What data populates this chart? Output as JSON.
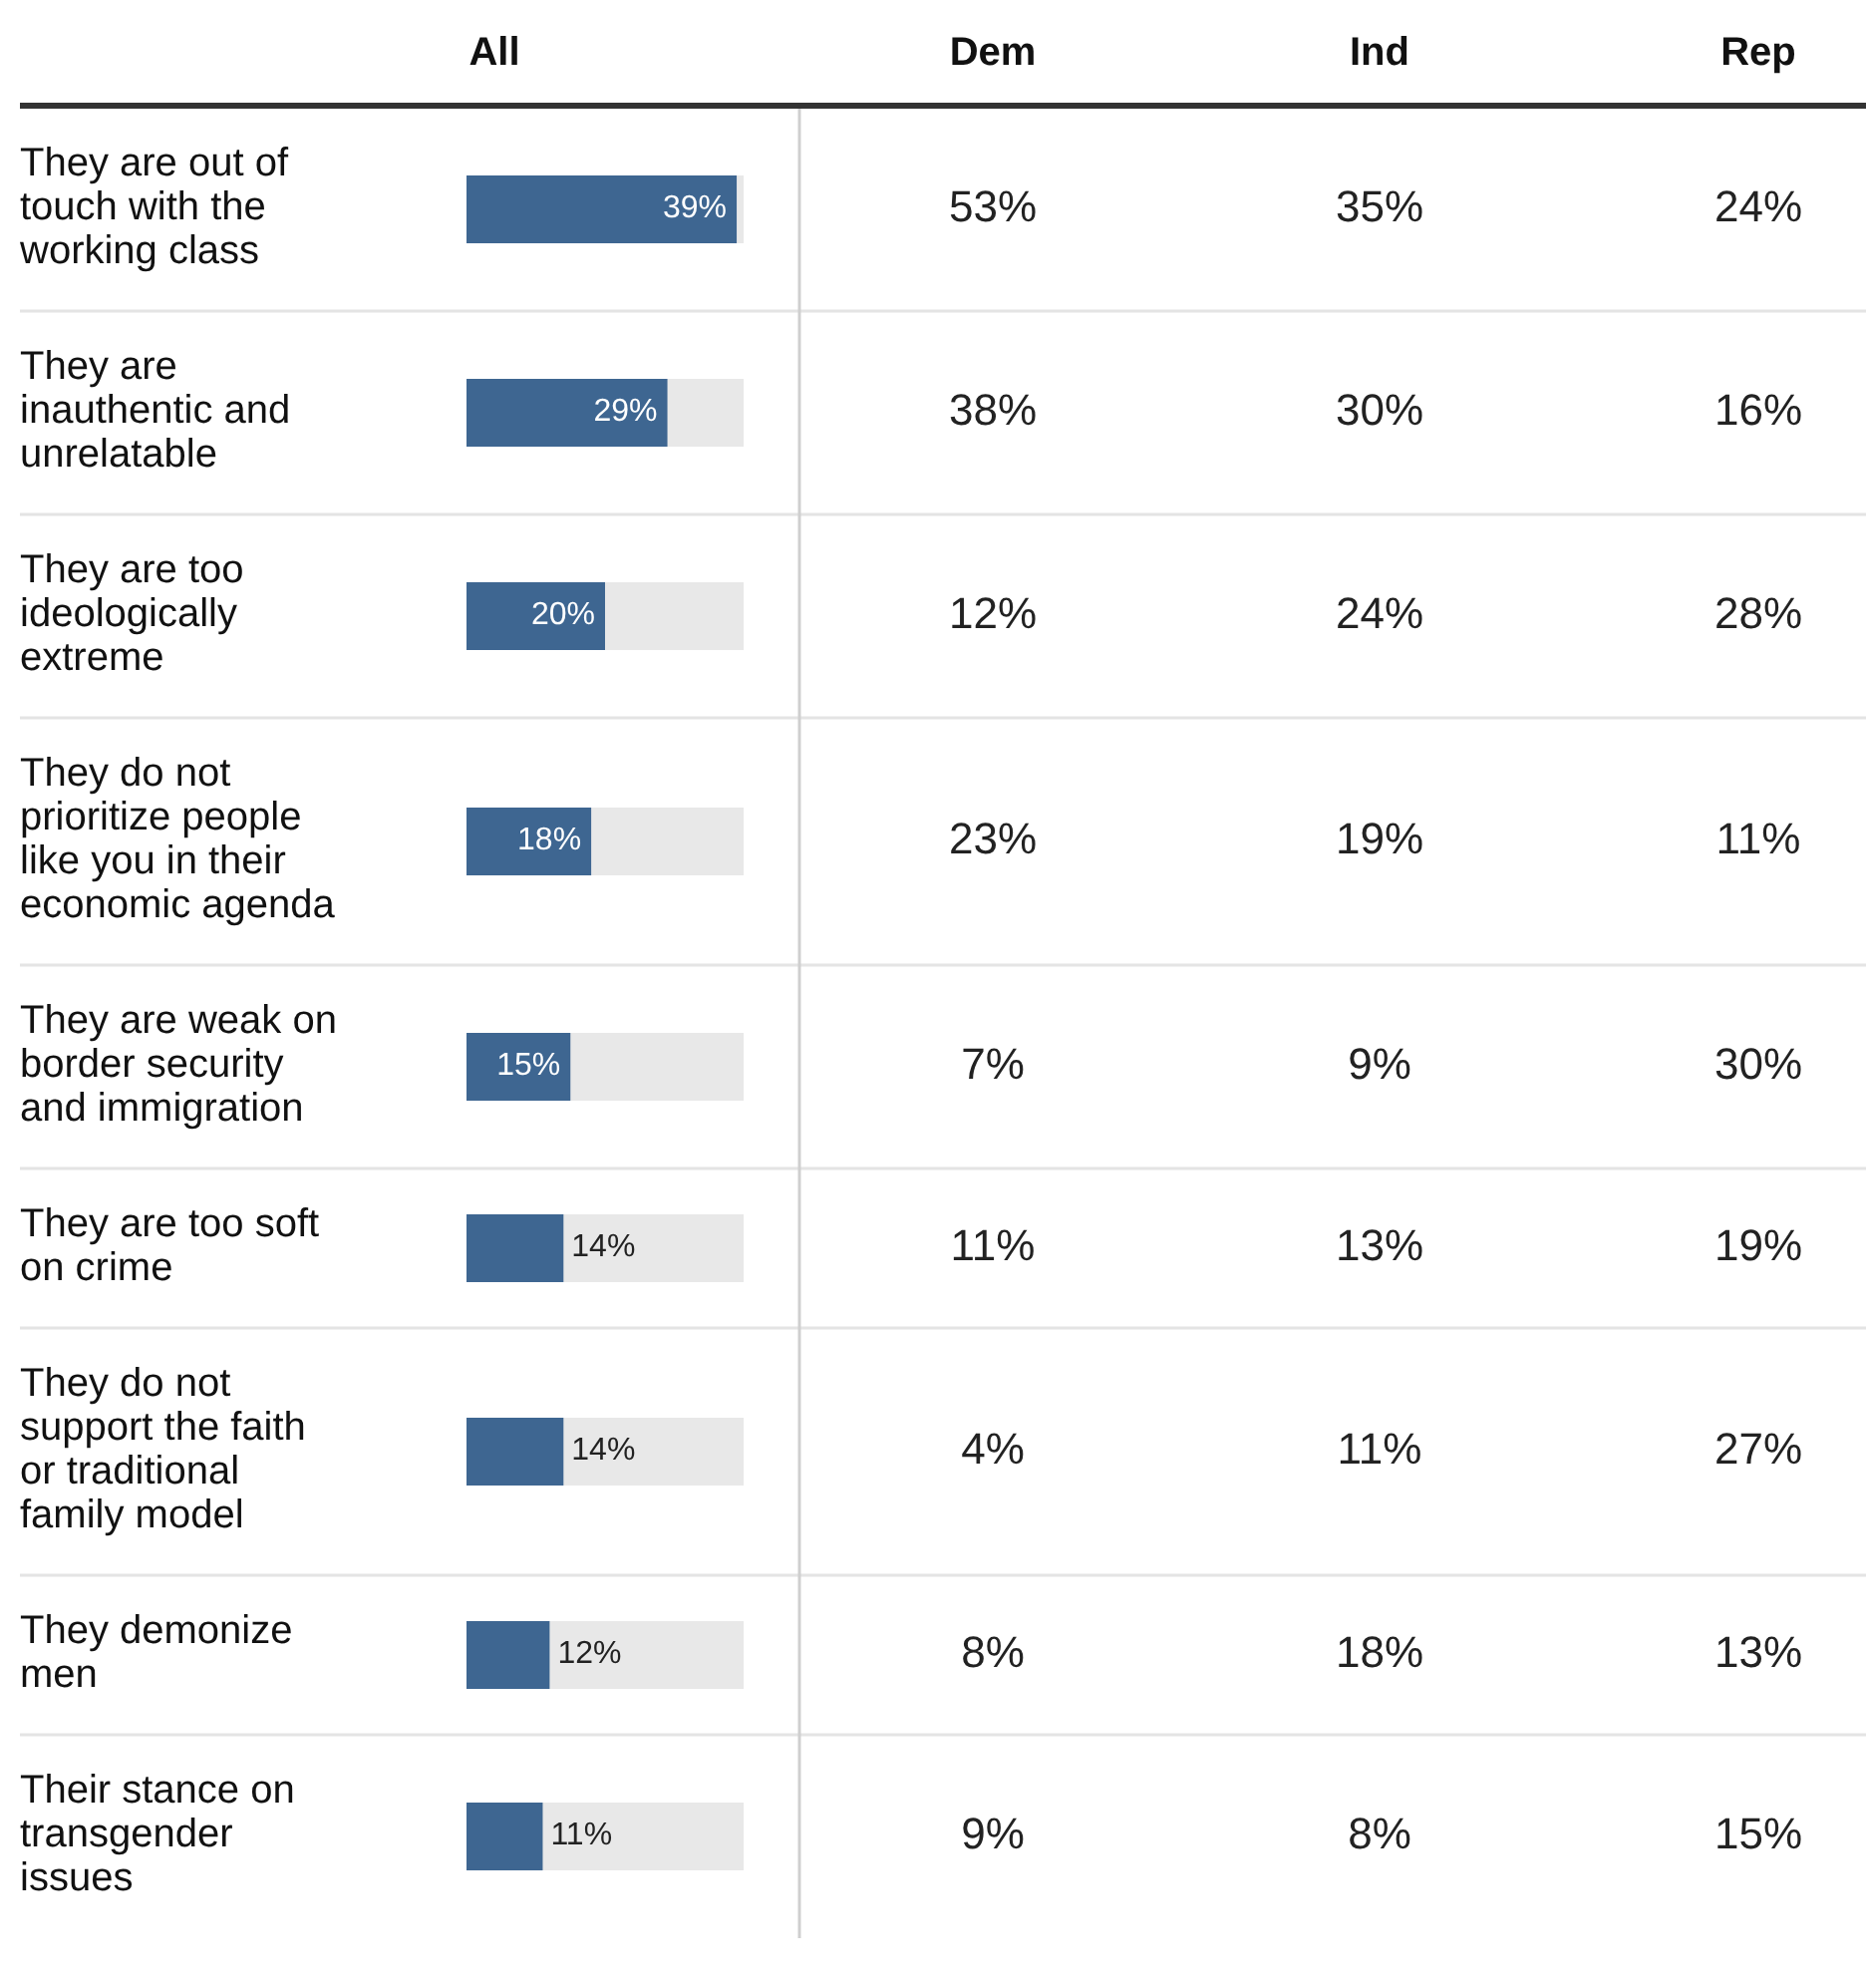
{
  "chart_data": [
    {
      "type": "bar",
      "orientation": "horizontal",
      "title": "All",
      "categories": [
        "They are out of touch with the working class",
        "They are inauthentic and unrelatable",
        "They are too ideologically extreme",
        "They do not prioritize people like you in their economic agenda",
        "They are weak on border security and immigration",
        "They are too soft on crime",
        "They do not support the faith or traditional family model",
        "They demonize men",
        "Their stance on transgender issues"
      ],
      "values": [
        39,
        29,
        20,
        18,
        15,
        14,
        14,
        12,
        11
      ],
      "value_labels": [
        "39%",
        "29%",
        "20%",
        "18%",
        "15%",
        "14%",
        "14%",
        "12%",
        "11%"
      ],
      "color": "#3e6691",
      "xlim": [
        0,
        40
      ],
      "tick_labels": "y"
    },
    {
      "type": "other",
      "categories": [
        "Dem",
        "Ind",
        "Rep"
      ],
      "cell_labels": [
        [
          "53%",
          "35%",
          "24%"
        ],
        [
          "38%",
          "30%",
          "16%"
        ],
        [
          "12%",
          "24%",
          "28%"
        ],
        [
          "23%",
          "19%",
          "11%"
        ],
        [
          "7%",
          "9%",
          "30%"
        ],
        [
          "11%",
          "13%",
          "19%"
        ],
        [
          "4%",
          "11%",
          "27%"
        ],
        [
          "8%",
          "18%",
          "13%"
        ],
        [
          "9%",
          "8%",
          "15%"
        ]
      ]
    }
  ]
}
